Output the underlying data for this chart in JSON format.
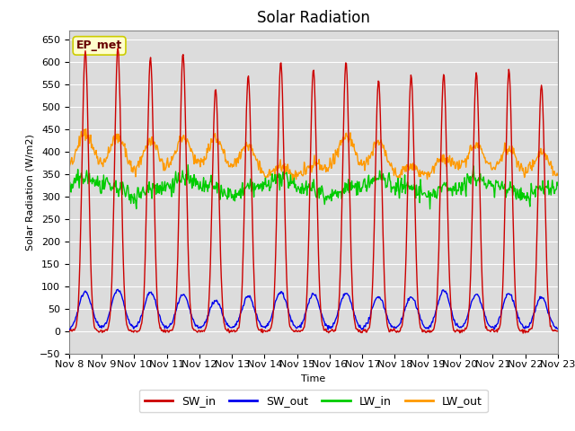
{
  "title": "Solar Radiation",
  "ylabel": "Solar Radiation (W/m2)",
  "xlabel": "Time",
  "ylim": [
    -50,
    670
  ],
  "yticks": [
    -50,
    0,
    50,
    100,
    150,
    200,
    250,
    300,
    350,
    400,
    450,
    500,
    550,
    600,
    650
  ],
  "start_day": 8,
  "end_day": 23,
  "series": {
    "SW_in": {
      "color": "#cc0000",
      "lw": 1.0
    },
    "SW_out": {
      "color": "#0000ee",
      "lw": 1.0
    },
    "LW_in": {
      "color": "#00cc00",
      "lw": 1.0
    },
    "LW_out": {
      "color": "#ff9900",
      "lw": 1.0
    }
  },
  "bg_color": "#dcdcdc",
  "fig_bg": "#ffffff",
  "ep_met_box": {
    "text": "EP_met",
    "facecolor": "#ffffcc",
    "edgecolor": "#cccc00",
    "text_color": "#660000",
    "fontsize": 9
  },
  "xtick_labels": [
    "Nov 8",
    "Nov 9",
    "Nov 10",
    "Nov 11",
    "Nov 12",
    "Nov 13",
    "Nov 14",
    "Nov 15",
    "Nov 16",
    "Nov 17",
    "Nov 18",
    "Nov 19",
    "Nov 20",
    "Nov 21",
    "Nov 22",
    "Nov 23"
  ],
  "title_fontsize": 12,
  "axis_fontsize": 8,
  "legend_fontsize": 9,
  "SW_in_peaks": [
    625,
    630,
    608,
    617,
    540,
    570,
    598,
    583,
    600,
    560,
    570,
    572,
    575,
    583,
    548
  ],
  "SW_out_peaks": [
    88,
    92,
    86,
    80,
    68,
    78,
    87,
    82,
    84,
    77,
    75,
    90,
    82,
    84,
    74
  ],
  "LW_out_night": 345,
  "LW_out_day_peaks": [
    430,
    435,
    435,
    428,
    420,
    415,
    375,
    368,
    425,
    422,
    378,
    380,
    405,
    408,
    408
  ],
  "LW_in_base": 308,
  "seed": 42
}
